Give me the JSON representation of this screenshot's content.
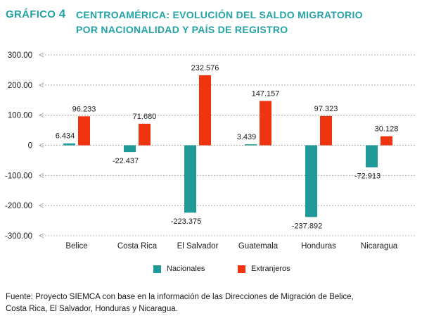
{
  "header": {
    "label": "GRÁFICO",
    "number": "4",
    "title_line1": "CENTROAMÉRICA: EVOLUCIÓN DEL SALDO MIGRATORIO",
    "title_line2": "POR NACIONALIDAD Y PAÍS DE REGISTRO"
  },
  "colors": {
    "title": "#23a3a5",
    "nacionales": "#1f9a98",
    "extranjeros": "#f0340f",
    "grid": "#9a9a9a"
  },
  "chart_data": {
    "type": "bar",
    "title": "CENTROAMÉRICA: EVOLUCIÓN DEL SALDO MIGRATORIO POR NACIONALIDAD Y PAÍS DE REGISTRO",
    "categories": [
      "Belice",
      "Costa Rica",
      "El Salvador",
      "Guatemala",
      "Honduras",
      "Nicaragua"
    ],
    "series": [
      {
        "name": "Nacionales",
        "values": [
          6.434,
          -22.437,
          -223.375,
          3.439,
          -237.892,
          -72.913
        ],
        "labels": [
          "6.434",
          "-22.437",
          "-223.375",
          "3.439",
          "-237.892",
          "-72.913"
        ]
      },
      {
        "name": "Extranjeros",
        "values": [
          96.233,
          71.68,
          232.576,
          147.157,
          97.323,
          30.128
        ],
        "labels": [
          "96.233",
          "71.680",
          "232.576",
          "147.157",
          "97.323",
          "30.128"
        ]
      }
    ],
    "ylim": [
      -300,
      300
    ],
    "yticks": [
      300,
      200,
      100,
      0,
      -100,
      -200,
      -300
    ],
    "ytick_labels": [
      "300.00",
      "200.00",
      "100.00",
      "0",
      "-100.00",
      "-200.00",
      "-300.00"
    ],
    "xlabel": "",
    "ylabel": "",
    "grid": true,
    "legend": "bottom"
  },
  "legend": {
    "nacionales": "Nacionales",
    "extranjeros": "Extranjeros"
  },
  "source": {
    "line1": "Fuente: Proyecto SIEMCA con base en la información de las Direcciones de Migración de Belice,",
    "line2": "Costa Rica, El Salvador, Honduras y Nicaragua."
  }
}
